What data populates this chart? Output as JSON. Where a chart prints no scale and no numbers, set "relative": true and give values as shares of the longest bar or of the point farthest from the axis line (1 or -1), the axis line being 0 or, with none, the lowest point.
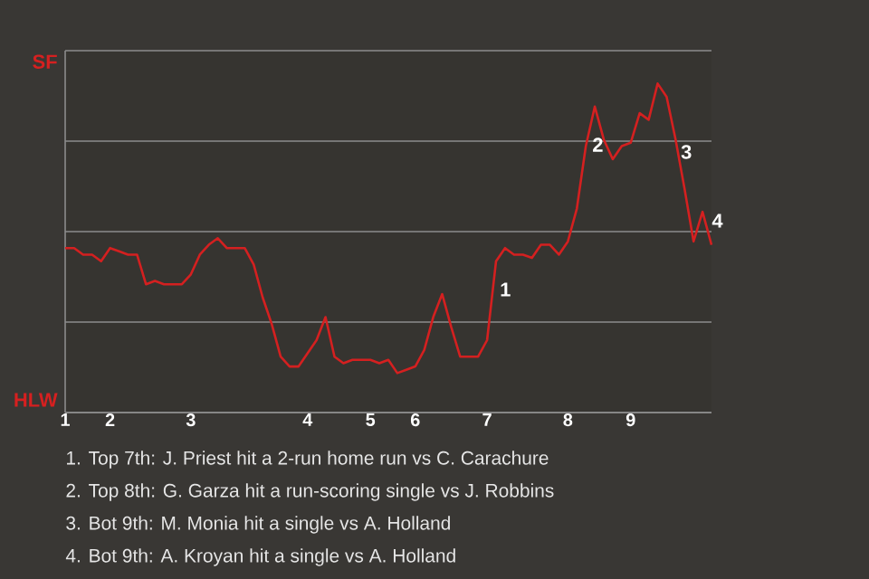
{
  "chart_data": {
    "type": "line",
    "relative": true,
    "categories": [
      "1",
      null,
      null,
      null,
      null,
      "2",
      null,
      null,
      null,
      null,
      null,
      null,
      null,
      null,
      "3",
      null,
      null,
      null,
      null,
      null,
      null,
      null,
      null,
      null,
      null,
      null,
      null,
      "4",
      null,
      null,
      null,
      null,
      null,
      null,
      "5",
      null,
      null,
      null,
      null,
      "6",
      null,
      null,
      null,
      null,
      null,
      null,
      null,
      "7",
      null,
      null,
      null,
      null,
      null,
      null,
      null,
      null,
      "8",
      null,
      null,
      null,
      null,
      null,
      null,
      "9",
      null,
      null,
      null,
      null,
      null,
      null,
      null,
      null,
      null
    ],
    "series": [
      {
        "color": "#d42020",
        "values": [
          0.5,
          0.5,
          0.48,
          0.48,
          0.46,
          0.5,
          0.49,
          0.48,
          0.48,
          0.39,
          0.4,
          0.39,
          0.39,
          0.39,
          0.42,
          0.48,
          0.51,
          0.53,
          0.5,
          0.5,
          0.5,
          0.45,
          0.35,
          0.27,
          0.17,
          0.14,
          0.14,
          0.18,
          0.22,
          0.29,
          0.17,
          0.15,
          0.16,
          0.16,
          0.16,
          0.15,
          0.16,
          0.12,
          0.13,
          0.14,
          0.19,
          0.29,
          0.36,
          0.26,
          0.17,
          0.17,
          0.17,
          0.22,
          0.46,
          0.5,
          0.48,
          0.48,
          0.47,
          0.51,
          0.51,
          0.48,
          0.52,
          0.62,
          0.81,
          0.93,
          0.83,
          0.77,
          0.81,
          0.82,
          0.91,
          0.89,
          1.0,
          0.96,
          0.83,
          0.68,
          0.52,
          0.61,
          0.51
        ]
      }
    ],
    "grid": "y",
    "marker": "none",
    "line_style": "solid",
    "annotations": [
      "SF",
      "HLW",
      "1",
      "2",
      "3",
      "4",
      "1. Top 7th: J. Priest hit a 2-run home run vs C. Carachure",
      "2. Top 8th: G. Garza hit a run-scoring single vs J. Robbins",
      "3. Bot 9th: M. Monia hit a single vs A. Holland",
      "4. Bot 9th: A. Kroyan hit a single vs A. Holland"
    ]
  }
}
